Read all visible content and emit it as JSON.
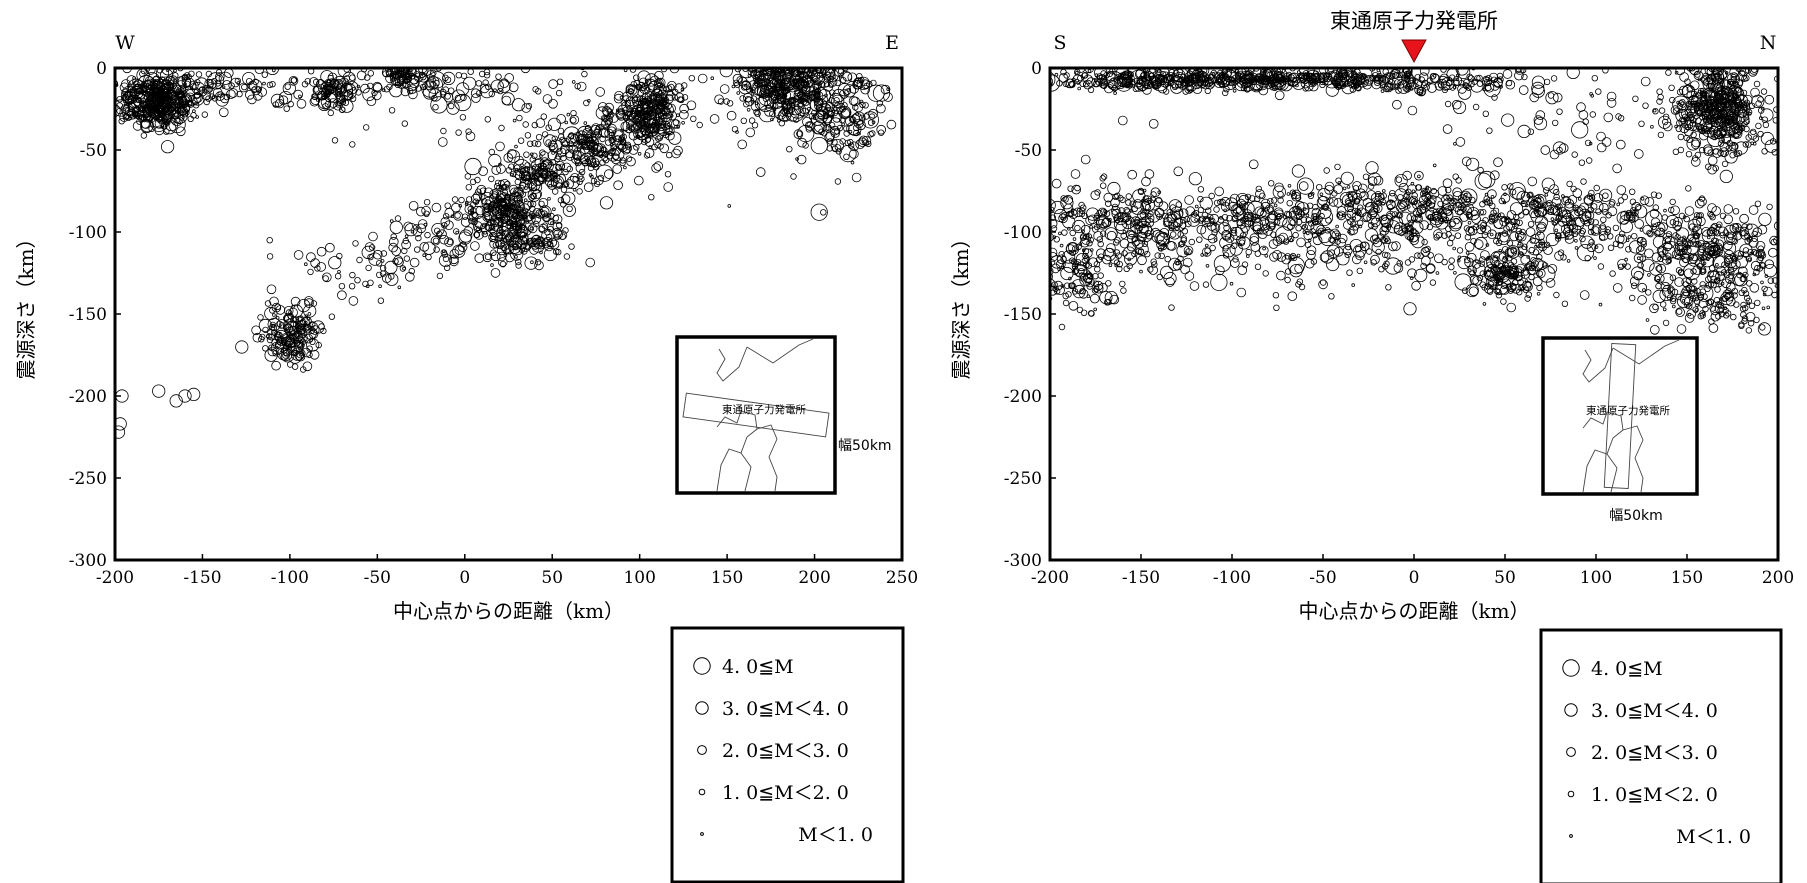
{
  "chart_data": [
    {
      "type": "scatter",
      "title": "",
      "xlabel": "中心点からの距離（km）",
      "ylabel": "震源深さ（km）",
      "xlim": [
        -200,
        250
      ],
      "ylim": [
        -300,
        0
      ],
      "xticks": [
        "-200",
        "-150",
        "-100",
        "-50",
        "0",
        "50",
        "100",
        "150",
        "200",
        "250"
      ],
      "yticks": [
        "0",
        "-50",
        "-100",
        "-150",
        "-200",
        "-250",
        "-300"
      ],
      "direction_left": "W",
      "direction_right": "E",
      "marker": "open-circle",
      "grid": false,
      "inset": {
        "site_label": "東通原子力発電所",
        "width_label": "幅50km"
      },
      "clusters": [
        {
          "x": -175,
          "y": -20,
          "sx": 12,
          "sy": 8,
          "n": 420
        },
        {
          "x": -140,
          "y": -12,
          "sx": 22,
          "sy": 5,
          "n": 80
        },
        {
          "x": -75,
          "y": -14,
          "sx": 6,
          "sy": 5,
          "n": 90
        },
        {
          "x": -35,
          "y": -4,
          "sx": 5,
          "sy": 3,
          "n": 60
        },
        {
          "x": -20,
          "y": -12,
          "sx": 25,
          "sy": 6,
          "n": 80
        },
        {
          "x": 185,
          "y": -12,
          "sx": 16,
          "sy": 10,
          "n": 380
        },
        {
          "x": 215,
          "y": -30,
          "sx": 14,
          "sy": 14,
          "n": 160
        },
        {
          "x": 105,
          "y": -25,
          "sx": 10,
          "sy": 10,
          "n": 280
        },
        {
          "x": 75,
          "y": -47,
          "sx": 12,
          "sy": 9,
          "n": 170
        },
        {
          "x": 45,
          "y": -65,
          "sx": 12,
          "sy": 8,
          "n": 130
        },
        {
          "x": 20,
          "y": -85,
          "sx": 12,
          "sy": 8,
          "n": 200
        },
        {
          "x": 35,
          "y": -103,
          "sx": 14,
          "sy": 9,
          "n": 170
        },
        {
          "x": -15,
          "y": -102,
          "sx": 16,
          "sy": 9,
          "n": 70
        },
        {
          "x": -60,
          "y": -122,
          "sx": 22,
          "sy": 12,
          "n": 60
        },
        {
          "x": -100,
          "y": -163,
          "sx": 8,
          "sy": 9,
          "n": 170
        },
        {
          "x": 60,
          "y": -35,
          "sx": 45,
          "sy": 25,
          "n": 110
        },
        {
          "x": -110,
          "y": -12,
          "sx": 60,
          "sy": 8,
          "n": 60
        }
      ],
      "points": [
        {
          "x": -196,
          "y": -200,
          "m": 3
        },
        {
          "x": -197,
          "y": -217,
          "m": 3
        },
        {
          "x": -198,
          "y": -222,
          "m": 3
        },
        {
          "x": -165,
          "y": -203,
          "m": 3
        },
        {
          "x": -160,
          "y": -200,
          "m": 3
        },
        {
          "x": -175,
          "y": -197,
          "m": 3
        },
        {
          "x": -155,
          "y": -199,
          "m": 3
        },
        {
          "x": 205,
          "y": -88,
          "m": 1
        }
      ]
    },
    {
      "type": "scatter",
      "title": "東通原子力発電所",
      "xlabel": "中心点からの距離（km）",
      "ylabel": "震源深さ（km）",
      "xlim": [
        -200,
        200
      ],
      "ylim": [
        -300,
        0
      ],
      "xticks": [
        "-200",
        "-150",
        "-100",
        "-50",
        "0",
        "50",
        "100",
        "150",
        "200"
      ],
      "yticks": [
        "0",
        "-50",
        "-100",
        "-150",
        "-200",
        "-250",
        "-300"
      ],
      "direction_left": "S",
      "direction_right": "N",
      "marker": "open-circle",
      "grid": false,
      "site_marker": {
        "x": 0,
        "color": "#e8141b"
      },
      "inset": {
        "site_label": "東通原子力発電所",
        "width_label": "幅50km"
      },
      "clusters": [
        {
          "x": -100,
          "y": -7,
          "sx": 55,
          "sy": 3,
          "n": 600
        },
        {
          "x": 10,
          "y": -8,
          "sx": 25,
          "sy": 4,
          "n": 110
        },
        {
          "x": 168,
          "y": -25,
          "sx": 12,
          "sy": 14,
          "n": 460
        },
        {
          "x": 100,
          "y": -30,
          "sx": 45,
          "sy": 20,
          "n": 90
        },
        {
          "x": -160,
          "y": -95,
          "sx": 30,
          "sy": 14,
          "n": 300
        },
        {
          "x": -80,
          "y": -90,
          "sx": 35,
          "sy": 10,
          "n": 260
        },
        {
          "x": 0,
          "y": -85,
          "sx": 30,
          "sy": 10,
          "n": 240
        },
        {
          "x": 80,
          "y": -92,
          "sx": 35,
          "sy": 10,
          "n": 260
        },
        {
          "x": 160,
          "y": -110,
          "sx": 25,
          "sy": 12,
          "n": 280
        },
        {
          "x": 50,
          "y": -125,
          "sx": 10,
          "sy": 8,
          "n": 150
        },
        {
          "x": 165,
          "y": -140,
          "sx": 20,
          "sy": 9,
          "n": 170
        },
        {
          "x": -185,
          "y": -125,
          "sx": 12,
          "sy": 12,
          "n": 120
        },
        {
          "x": -80,
          "y": -115,
          "sx": 45,
          "sy": 12,
          "n": 110
        },
        {
          "x": 40,
          "y": -110,
          "sx": 60,
          "sy": 15,
          "n": 160
        }
      ],
      "points": [
        {
          "x": 40,
          "y": -68,
          "m": 4
        },
        {
          "x": 38,
          "y": -69,
          "m": 4
        },
        {
          "x": -160,
          "y": -32,
          "m": 2
        },
        {
          "x": -143,
          "y": -34,
          "m": 2
        },
        {
          "x": 25,
          "y": -24,
          "m": 3
        }
      ]
    }
  ],
  "legend": {
    "entries": [
      {
        "label": "4. 0≦M",
        "m": 4
      },
      {
        "label": "3. 0≦M＜4. 0",
        "m": 3
      },
      {
        "label": "2. 0≦M＜3. 0",
        "m": 2
      },
      {
        "label": "1. 0≦M＜2. 0",
        "m": 1
      },
      {
        "label": "M＜1. 0",
        "m": 0
      }
    ]
  },
  "colors": {
    "ink": "#000000",
    "site_marker": "#e8141b"
  }
}
